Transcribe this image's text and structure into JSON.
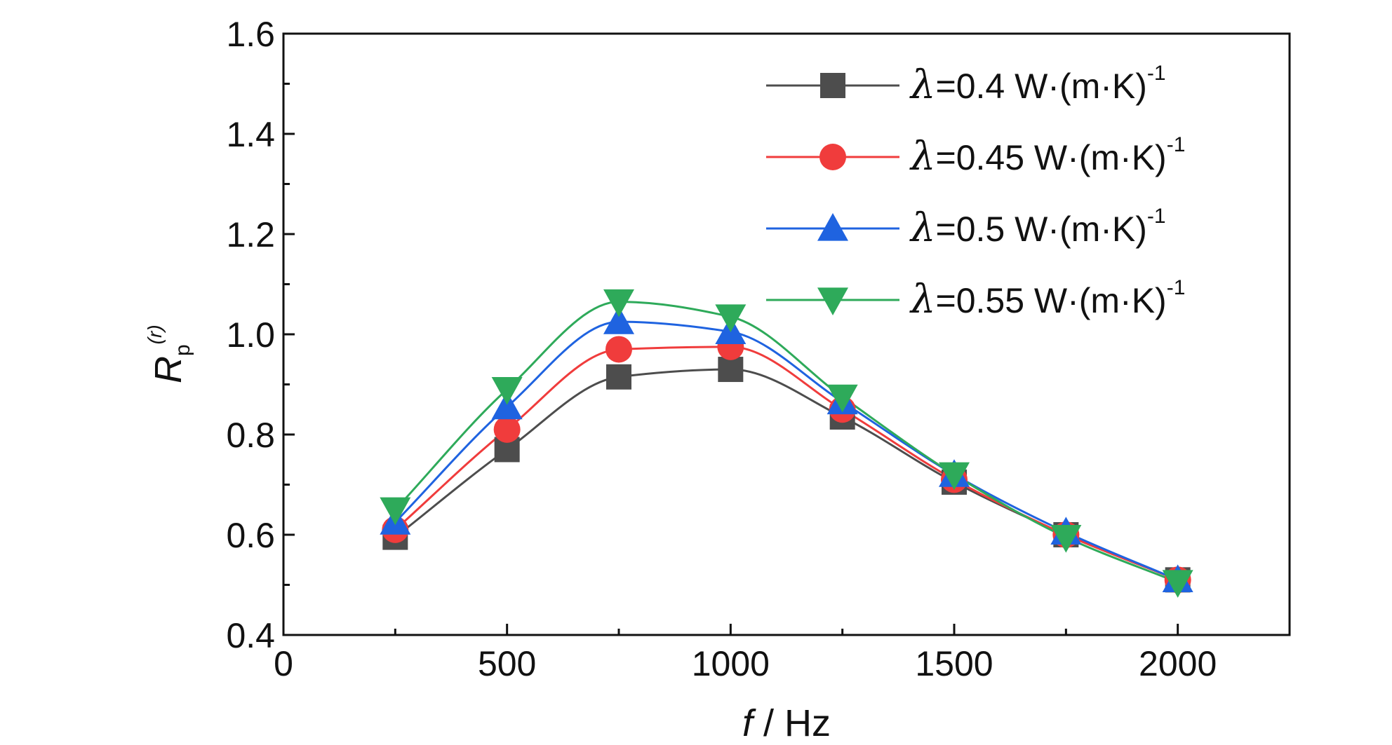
{
  "chart_data": {
    "type": "line",
    "xlabel": {
      "var": "f",
      "unit": " / Hz"
    },
    "ylabel": {
      "var": "R",
      "sub": "p",
      "sup": "(r)"
    },
    "xlim": [
      0,
      2250
    ],
    "ylim": [
      0.4,
      1.6
    ],
    "x_ticks": [
      0,
      500,
      1000,
      1500,
      2000
    ],
    "x_ticks_text": [
      "0",
      "500",
      "1000",
      "1500",
      "2000"
    ],
    "y_ticks": [
      0.4,
      0.6,
      0.8,
      1.0,
      1.2,
      1.4,
      1.6
    ],
    "y_ticks_text": [
      "0.4",
      "0.6",
      "0.8",
      "1.0",
      "1.2",
      "1.4",
      "1.6"
    ],
    "legend_position": "top-right",
    "x": [
      250,
      500,
      750,
      1000,
      1250,
      1500,
      1750,
      2000
    ],
    "series": [
      {
        "name": "λ=0.4 W·(m·K)-1",
        "label_symbol": "λ",
        "label_main": "=0.4 W·(m·K)",
        "label_sup": "-1",
        "color": "#4d4d4d",
        "marker": "square",
        "values": [
          0.595,
          0.77,
          0.915,
          0.93,
          0.835,
          0.705,
          0.6,
          0.51
        ]
      },
      {
        "name": "λ=0.45 W·(m·K)-1",
        "label_symbol": "λ",
        "label_main": "=0.45 W·(m·K)",
        "label_sup": "-1",
        "color": "#f03c3c",
        "marker": "circle",
        "values": [
          0.61,
          0.81,
          0.97,
          0.975,
          0.85,
          0.71,
          0.6,
          0.51
        ]
      },
      {
        "name": "λ=0.5 W·(m·K)-1",
        "label_symbol": "λ",
        "label_main": "=0.5 W·(m·K)",
        "label_sup": "-1",
        "color": "#1f63e0",
        "marker": "triangle-up",
        "values": [
          0.625,
          0.855,
          1.025,
          1.005,
          0.865,
          0.72,
          0.605,
          0.51
        ]
      },
      {
        "name": "λ=0.55 W·(m·K)-1",
        "label_symbol": "λ",
        "label_main": "=0.55 W·(m·K)",
        "label_sup": "-1",
        "color": "#2eaa5a",
        "marker": "triangle-down",
        "values": [
          0.65,
          0.89,
          1.065,
          1.035,
          0.875,
          0.72,
          0.595,
          0.505
        ]
      }
    ]
  }
}
